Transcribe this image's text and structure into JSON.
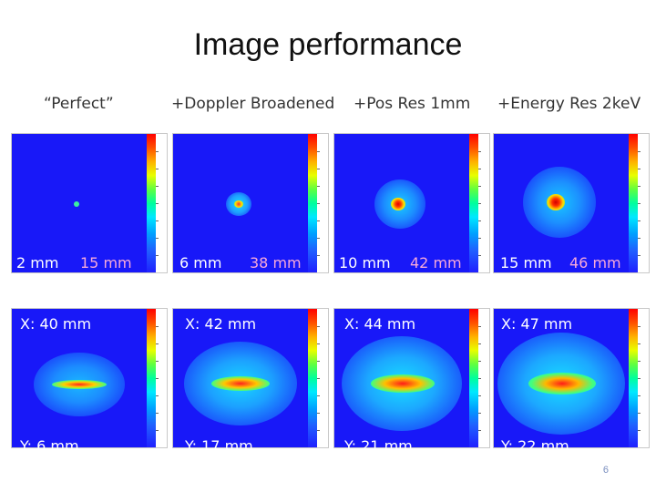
{
  "title": "Image performance",
  "columns": [
    {
      "label": "“Perfect”"
    },
    {
      "label": "+Doppler Broadened"
    },
    {
      "label": "+Pos Res 1mm"
    },
    {
      "label": "+Energy Res 2keV"
    }
  ],
  "top_row": [
    {
      "a": "2 mm",
      "b": "15 mm"
    },
    {
      "a": "6 mm",
      "b": "38 mm"
    },
    {
      "a": "10 mm",
      "b": "42 mm"
    },
    {
      "a": "15 mm",
      "b": "46 mm"
    }
  ],
  "bottom_row": [
    {
      "x": "X: 40 mm",
      "y": "Y: 6 mm"
    },
    {
      "x": "X: 42 mm",
      "y": "Y: 17 mm"
    },
    {
      "x": "X: 44 mm",
      "y": "Y: 21 mm"
    },
    {
      "x": "X: 47 mm",
      "y": "Y: 22 mm"
    }
  ],
  "page_number": "6",
  "colors": {
    "background_blue": "#1818f8",
    "caption_white": "#ffffff",
    "caption_pink": "#f7a9d9"
  }
}
